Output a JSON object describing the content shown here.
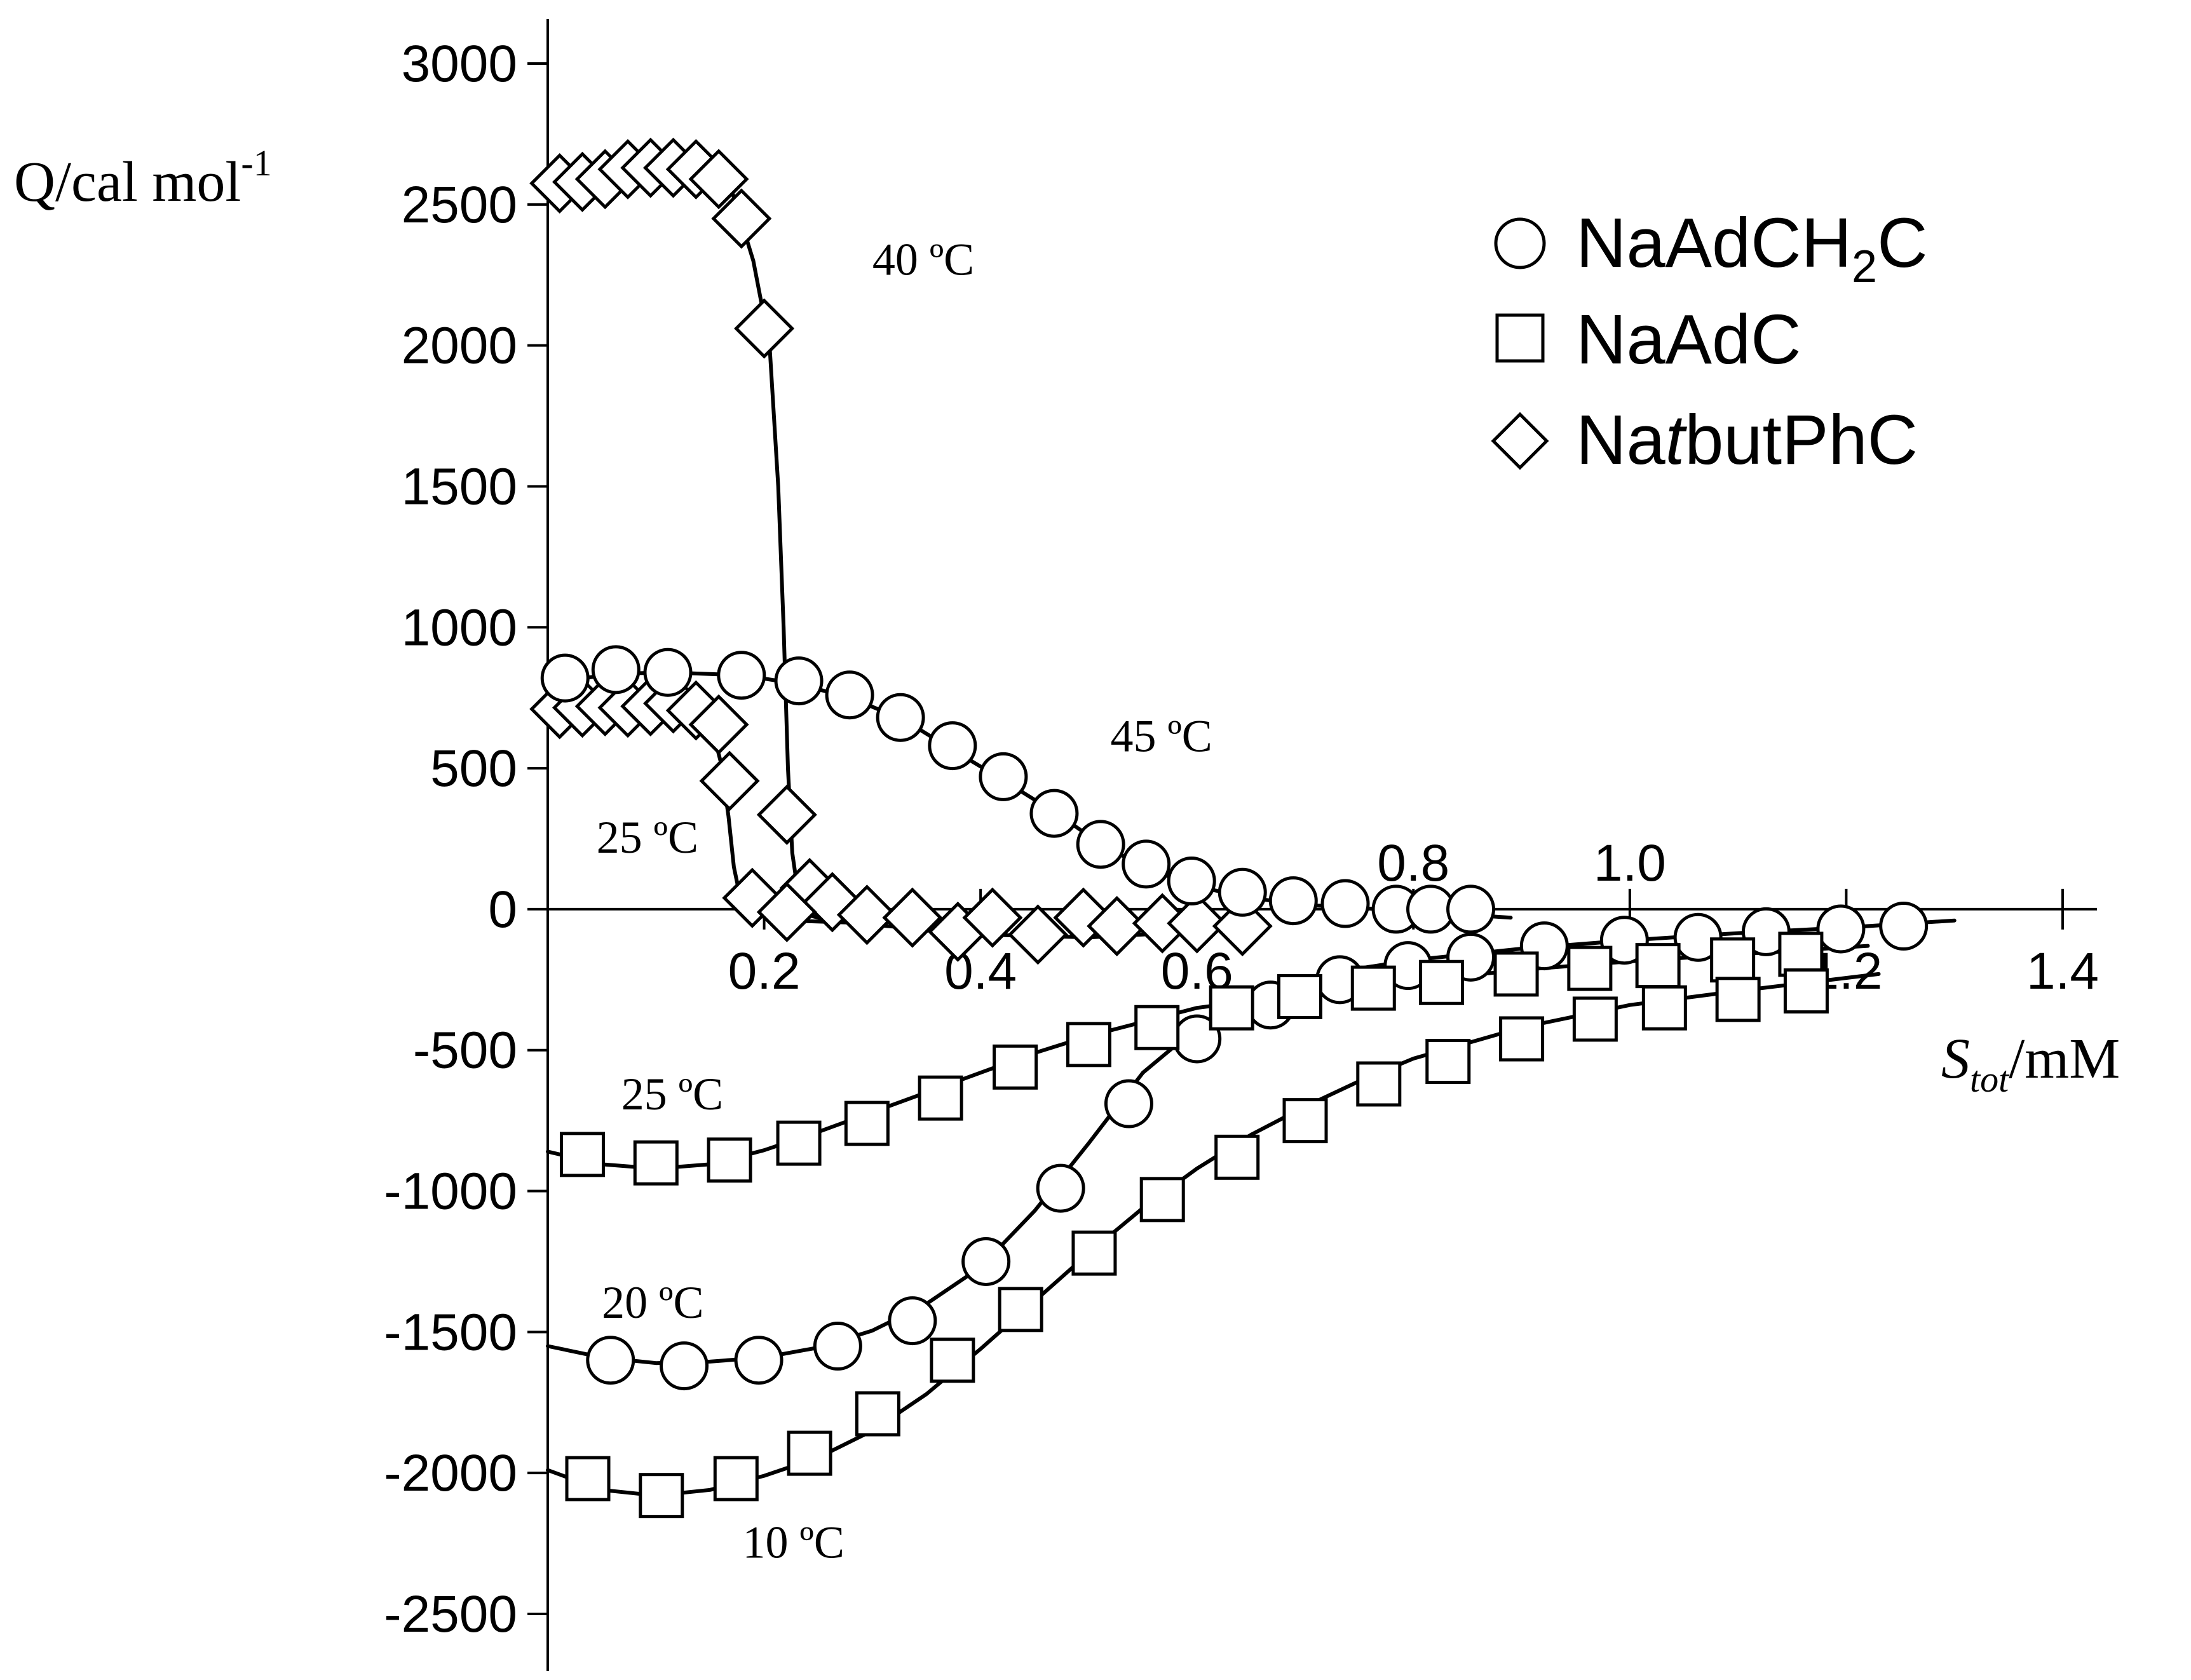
{
  "chart_data": {
    "type": "scatter",
    "title": "",
    "ylabel": "Q/cal mol",
    "ylabel_sup": "-1",
    "xlabel_italic": "S",
    "xlabel_sub": "tot",
    "xlabel_rest": "/mM",
    "xlim": [
      0,
      1.4
    ],
    "ylim": [
      -2500,
      3000
    ],
    "x_ticks": [
      {
        "value": 0.2,
        "label": "0.2",
        "pos": "below"
      },
      {
        "value": 0.4,
        "label": "0.4",
        "pos": "below"
      },
      {
        "value": 0.6,
        "label": "0.6",
        "pos": "below"
      },
      {
        "value": 0.8,
        "label": "0.8",
        "pos": "above"
      },
      {
        "value": 1.0,
        "label": "1.0",
        "pos": "above"
      },
      {
        "value": 1.2,
        "label": "1.2",
        "pos": "below"
      },
      {
        "value": 1.4,
        "label": "1.4",
        "pos": "below"
      }
    ],
    "y_ticks": [
      3000,
      2500,
      2000,
      1500,
      1000,
      500,
      0,
      -500,
      -1000,
      -1500,
      -2000,
      -2500
    ],
    "legend": {
      "position": "top-right",
      "entries": [
        {
          "marker": "circle",
          "name": "NaAdCH",
          "sub": "2",
          "tail": "C"
        },
        {
          "marker": "square",
          "name": "NaAdC",
          "sub": "",
          "tail": ""
        },
        {
          "marker": "diamond",
          "name": "Na",
          "italic": "t",
          "tail": "butPhC"
        }
      ]
    },
    "series": [
      {
        "marker": "diamond",
        "temperature_label": "40 ºC",
        "x": [
          0.011,
          0.032,
          0.053,
          0.074,
          0.095,
          0.116,
          0.137,
          0.158,
          0.179,
          0.2,
          0.221,
          0.242,
          0.263,
          0.295,
          0.337,
          0.379,
          0.411,
          0.453,
          0.495,
          0.526,
          0.568,
          0.6,
          0.642
        ],
        "y": [
          2575,
          2580,
          2590,
          2625,
          2630,
          2630,
          2625,
          2590,
          2450,
          2060,
          335,
          75,
          25,
          -20,
          -30,
          -80,
          -30,
          -90,
          -30,
          -60,
          -50,
          -50,
          -60
        ],
        "curve_x": [
          0.0,
          0.05,
          0.1,
          0.14,
          0.17,
          0.19,
          0.205,
          0.213,
          0.218,
          0.222,
          0.226,
          0.232,
          0.24,
          0.26,
          0.3,
          0.4,
          0.5,
          0.6,
          0.645
        ],
        "curve_y": [
          2575,
          2590,
          2630,
          2620,
          2550,
          2300,
          2000,
          1500,
          1000,
          500,
          200,
          40,
          -20,
          -40,
          -55,
          -90,
          -100,
          -80,
          -60
        ]
      },
      {
        "marker": "diamond",
        "temperature_label": "25 ºC",
        "x": [
          0.011,
          0.032,
          0.053,
          0.074,
          0.095,
          0.116,
          0.137,
          0.158,
          0.168,
          0.189,
          0.221
        ],
        "y": [
          710,
          715,
          720,
          715,
          720,
          730,
          705,
          655,
          455,
          40,
          -10
        ],
        "curve_x": [
          0.0,
          0.06,
          0.12,
          0.14,
          0.152,
          0.16,
          0.167,
          0.172,
          0.178,
          0.19,
          0.22,
          0.3
        ],
        "curve_y": [
          720,
          725,
          720,
          700,
          640,
          520,
          330,
          150,
          40,
          -20,
          -40,
          -50
        ]
      },
      {
        "marker": "circle",
        "temperature_label": "45 ºC",
        "x": [
          0.016,
          0.063,
          0.111,
          0.179,
          0.232,
          0.279,
          0.326,
          0.374,
          0.421,
          0.468,
          0.511,
          0.553,
          0.595,
          0.642,
          0.689,
          0.737,
          0.784,
          0.816,
          0.853
        ],
        "y": [
          820,
          850,
          840,
          830,
          810,
          760,
          680,
          580,
          470,
          340,
          230,
          160,
          100,
          60,
          30,
          20,
          0,
          0,
          0
        ],
        "curve_x": [
          0.0,
          0.06,
          0.11,
          0.18,
          0.23,
          0.28,
          0.33,
          0.37,
          0.42,
          0.47,
          0.51,
          0.55,
          0.6,
          0.65,
          0.7,
          0.75,
          0.8,
          0.85,
          0.89
        ],
        "curve_y": [
          800,
          835,
          840,
          830,
          800,
          750,
          670,
          575,
          460,
          340,
          235,
          150,
          80,
          40,
          15,
          5,
          -10,
          -20,
          -30
        ]
      },
      {
        "marker": "circle",
        "temperature_label": "20 ºC",
        "x": [
          0.058,
          0.126,
          0.195,
          0.268,
          0.337,
          0.405,
          0.474,
          0.537,
          0.6,
          0.668,
          0.732,
          0.795,
          0.853,
          0.921,
          0.995,
          1.063,
          1.126,
          1.195,
          1.253
        ],
        "y": [
          -1600,
          -1620,
          -1600,
          -1550,
          -1460,
          -1250,
          -990,
          -690,
          -460,
          -340,
          -250,
          -200,
          -170,
          -130,
          -110,
          -100,
          -80,
          -70,
          -60
        ],
        "curve_x": [
          0.0,
          0.05,
          0.1,
          0.15,
          0.2,
          0.25,
          0.3,
          0.35,
          0.4,
          0.45,
          0.5,
          0.55,
          0.6,
          0.65,
          0.7,
          0.75,
          0.8,
          0.9,
          1.0,
          1.1,
          1.2,
          1.3
        ],
        "curve_y": [
          -1550,
          -1590,
          -1610,
          -1605,
          -1590,
          -1555,
          -1495,
          -1400,
          -1270,
          -1070,
          -830,
          -580,
          -420,
          -320,
          -255,
          -210,
          -180,
          -140,
          -110,
          -85,
          -65,
          -40
        ]
      },
      {
        "marker": "square",
        "temperature_label": "25 ºC",
        "x": [
          0.032,
          0.1,
          0.168,
          0.232,
          0.295,
          0.363,
          0.432,
          0.5,
          0.563,
          0.632,
          0.695,
          0.763,
          0.826,
          0.895,
          0.963,
          1.026,
          1.095,
          1.158
        ],
        "y": [
          -870,
          -900,
          -890,
          -830,
          -760,
          -670,
          -560,
          -480,
          -420,
          -350,
          -310,
          -280,
          -260,
          -230,
          -210,
          -200,
          -180,
          -160
        ],
        "curve_x": [
          0.0,
          0.05,
          0.1,
          0.15,
          0.2,
          0.25,
          0.3,
          0.35,
          0.4,
          0.45,
          0.5,
          0.55,
          0.6,
          0.7,
          0.8,
          0.9,
          1.0,
          1.1,
          1.22
        ],
        "curve_y": [
          -860,
          -905,
          -920,
          -905,
          -855,
          -790,
          -720,
          -650,
          -580,
          -510,
          -450,
          -400,
          -350,
          -300,
          -255,
          -215,
          -185,
          -160,
          -130
        ]
      },
      {
        "marker": "square",
        "temperature_label": "10 ºC",
        "x": [
          0.037,
          0.105,
          0.174,
          0.242,
          0.305,
          0.374,
          0.437,
          0.505,
          0.568,
          0.637,
          0.7,
          0.768,
          0.832,
          0.9,
          0.968,
          1.032,
          1.1,
          1.163
        ],
        "y": [
          -2020,
          -2080,
          -2020,
          -1930,
          -1790,
          -1600,
          -1420,
          -1220,
          -1030,
          -880,
          -750,
          -620,
          -540,
          -460,
          -390,
          -350,
          -320,
          -290
        ],
        "curve_x": [
          0.0,
          0.05,
          0.1,
          0.15,
          0.2,
          0.25,
          0.3,
          0.35,
          0.4,
          0.45,
          0.5,
          0.55,
          0.6,
          0.65,
          0.7,
          0.75,
          0.8,
          0.9,
          1.0,
          1.1,
          1.23
        ],
        "curve_y": [
          -1990,
          -2060,
          -2080,
          -2060,
          -2010,
          -1945,
          -1850,
          -1720,
          -1560,
          -1390,
          -1220,
          -1060,
          -920,
          -800,
          -700,
          -610,
          -530,
          -420,
          -340,
          -290,
          -230
        ]
      }
    ],
    "annotations": [
      {
        "text": "40 ºC",
        "x": 0.3,
        "y": 2250,
        "size": 72
      },
      {
        "text": "45 ºC",
        "x": 0.52,
        "y": 560,
        "size": 72
      },
      {
        "text": "25 ºC",
        "x": 0.045,
        "y": 200,
        "size": 72
      },
      {
        "text": "25 ºC",
        "x": 0.068,
        "y": -710,
        "size": 72
      },
      {
        "text": "20 ºC",
        "x": 0.05,
        "y": -1450,
        "size": 72
      },
      {
        "text": "10 ºC",
        "x": 0.18,
        "y": -2300,
        "size": 72
      }
    ]
  }
}
